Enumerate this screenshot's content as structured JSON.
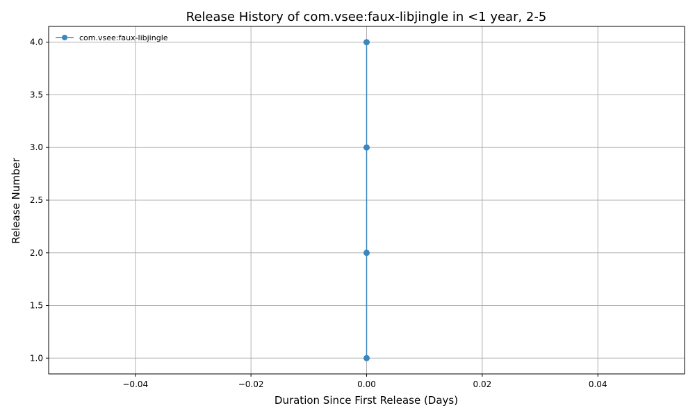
{
  "chart_data": {
    "type": "line",
    "title": "Release History of com.vsee:faux-libjingle in <1 year, 2-5",
    "xlabel": "Duration Since First Release (Days)",
    "ylabel": "Release Number",
    "xlim": [
      -0.055,
      0.055
    ],
    "ylim": [
      0.85,
      4.15
    ],
    "xticks": [
      -0.04,
      -0.02,
      0.0,
      0.02,
      0.04
    ],
    "xtick_labels": [
      "−0.04",
      "−0.02",
      "0.00",
      "0.02",
      "0.04"
    ],
    "yticks": [
      1.0,
      1.5,
      2.0,
      2.5,
      3.0,
      3.5,
      4.0
    ],
    "ytick_labels": [
      "1.0",
      "1.5",
      "2.0",
      "2.5",
      "3.0",
      "3.5",
      "4.0"
    ],
    "grid": true,
    "legend_position": "top-left",
    "series": [
      {
        "name": "com.vsee:faux-libjingle",
        "color": "#3a87c0",
        "marker": "circle",
        "x": [
          0,
          0,
          0,
          0
        ],
        "y": [
          1,
          2,
          3,
          4
        ]
      }
    ]
  }
}
